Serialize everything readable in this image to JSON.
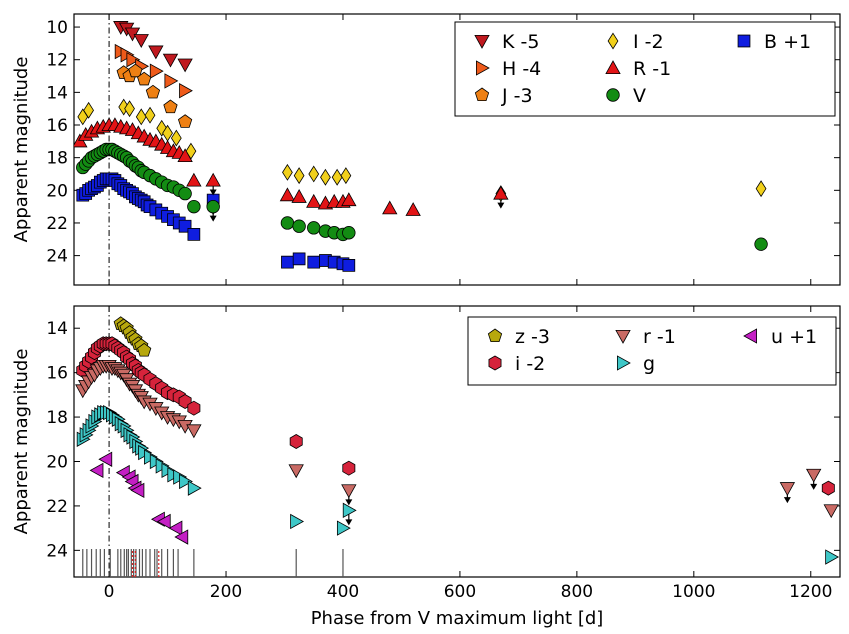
{
  "chart_data": [
    {
      "type": "scatter",
      "ylabel": "Apparent magnitude",
      "xlabel": "",
      "xlim": [
        -60,
        1250
      ],
      "ylim": [
        25.8,
        9.2
      ],
      "y_inverted": true,
      "xticks": [
        0,
        200,
        400,
        600,
        800,
        1000,
        1200
      ],
      "yticks": [
        10,
        12,
        14,
        16,
        18,
        20,
        22,
        24
      ],
      "vline_x": 0,
      "legend_position": "top-right",
      "series": [
        {
          "name": "K -5",
          "marker": "triangle-down",
          "color": "#c0191f",
          "x": [
            20,
            30,
            40,
            55,
            80,
            105,
            130
          ],
          "y": [
            10.0,
            10.1,
            10.4,
            10.8,
            11.5,
            12.0,
            12.3
          ]
        },
        {
          "name": "H -4",
          "marker": "triangle-right",
          "color": "#ee5a1a",
          "x": [
            20,
            30,
            40,
            55,
            80,
            105,
            130
          ],
          "y": [
            11.5,
            11.7,
            12.0,
            12.4,
            12.7,
            13.3,
            13.9
          ]
        },
        {
          "name": "J -3",
          "marker": "pentagon",
          "color": "#ee8014",
          "x": [
            25,
            35,
            45,
            60,
            75,
            105,
            130
          ],
          "y": [
            12.8,
            13.0,
            12.7,
            13.2,
            14.0,
            14.9,
            15.8
          ]
        },
        {
          "name": "I -2",
          "marker": "diamond",
          "color": "#f1d01b",
          "x": [
            -45,
            -35,
            25,
            35,
            55,
            70,
            90,
            100,
            115,
            140,
            305,
            325,
            350,
            370,
            390,
            405,
            670,
            1115
          ],
          "y": [
            15.5,
            15.1,
            14.9,
            15.0,
            15.5,
            15.4,
            16.2,
            16.5,
            16.8,
            17.6,
            18.9,
            19.1,
            19.0,
            19.2,
            19.2,
            19.1,
            20.2,
            19.9
          ],
          "upper_limit_x": [
            670
          ]
        },
        {
          "name": "R -1",
          "marker": "triangle-up",
          "color": "#e21416",
          "x": [
            -50,
            -40,
            -30,
            -20,
            -10,
            0,
            10,
            20,
            30,
            40,
            50,
            60,
            70,
            80,
            90,
            100,
            110,
            120,
            130,
            145,
            305,
            325,
            350,
            370,
            385,
            400,
            410,
            480,
            520,
            670
          ],
          "y": [
            17.0,
            16.6,
            16.4,
            16.2,
            16.1,
            16.0,
            16.0,
            16.1,
            16.2,
            16.3,
            16.5,
            16.7,
            16.9,
            17.0,
            17.2,
            17.4,
            17.6,
            17.7,
            17.9,
            19.4,
            20.3,
            20.4,
            20.7,
            20.8,
            20.7,
            20.7,
            20.6,
            21.1,
            21.2,
            20.2
          ]
        },
        {
          "name": "V",
          "marker": "circle",
          "color": "#138c13",
          "x": [
            -45,
            -40,
            -35,
            -30,
            -25,
            -20,
            -15,
            -10,
            -5,
            0,
            5,
            10,
            15,
            20,
            25,
            30,
            35,
            40,
            45,
            50,
            55,
            60,
            70,
            80,
            90,
            100,
            110,
            120,
            130,
            145,
            305,
            325,
            350,
            370,
            385,
            400,
            410,
            1115
          ],
          "y": [
            18.6,
            18.4,
            18.2,
            18.0,
            17.9,
            17.8,
            17.7,
            17.6,
            17.5,
            17.5,
            17.5,
            17.6,
            17.7,
            17.8,
            17.9,
            18.0,
            18.2,
            18.3,
            18.5,
            18.6,
            18.8,
            18.9,
            19.1,
            19.3,
            19.5,
            19.7,
            19.8,
            20.0,
            20.2,
            21.0,
            22.0,
            22.2,
            22.3,
            22.5,
            22.6,
            22.7,
            22.6,
            23.3
          ]
        },
        {
          "name": "B +1",
          "marker": "square",
          "color": "#0f1de0",
          "x": [
            -45,
            -40,
            -35,
            -30,
            -25,
            -20,
            -15,
            -10,
            -5,
            0,
            5,
            10,
            15,
            20,
            25,
            30,
            35,
            40,
            45,
            50,
            55,
            60,
            65,
            70,
            80,
            90,
            100,
            110,
            120,
            130,
            145,
            305,
            325,
            350,
            370,
            385,
            400,
            410
          ],
          "y": [
            20.3,
            20.2,
            20.0,
            19.9,
            19.8,
            19.7,
            19.5,
            19.4,
            19.3,
            19.3,
            19.3,
            19.4,
            19.6,
            19.7,
            19.9,
            20.0,
            20.1,
            20.2,
            20.4,
            20.5,
            20.6,
            20.7,
            20.9,
            21.0,
            21.2,
            21.4,
            21.6,
            21.8,
            22.0,
            22.2,
            22.7,
            24.4,
            24.2,
            24.4,
            24.3,
            24.4,
            24.5,
            24.6
          ]
        }
      ],
      "upper_limits": [
        {
          "series": "B +1",
          "x": 178,
          "y": 20.6
        },
        {
          "series": "V",
          "x": 178,
          "y": 21.0
        },
        {
          "series": "R -1",
          "x": 178,
          "y": 19.4
        }
      ]
    },
    {
      "type": "scatter",
      "ylabel": "Apparent magnitude",
      "xlabel": "Phase from V maximum light [d]",
      "xlim": [
        -60,
        1250
      ],
      "ylim": [
        25.2,
        13.0
      ],
      "y_inverted": true,
      "xticks": [
        0,
        200,
        400,
        600,
        800,
        1000,
        1200
      ],
      "xticklabels": [
        "0",
        "200",
        "400",
        "600",
        "800",
        "1000",
        "1200"
      ],
      "yticks": [
        14,
        16,
        18,
        20,
        22,
        24
      ],
      "vline_x": 0,
      "legend_position": "top-right",
      "series": [
        {
          "name": "z -3",
          "marker": "pentagon",
          "color": "#b7a80d",
          "x": [
            20,
            25,
            30,
            35,
            40,
            45,
            50,
            55,
            60
          ],
          "y": [
            13.8,
            13.9,
            14.0,
            14.2,
            14.4,
            14.5,
            14.7,
            14.8,
            15.0
          ]
        },
        {
          "name": "i -2",
          "marker": "hexagon",
          "color": "#d6233b",
          "x": [
            -45,
            -40,
            -35,
            -30,
            -25,
            -20,
            -15,
            -10,
            -5,
            0,
            5,
            10,
            15,
            20,
            25,
            30,
            35,
            40,
            45,
            50,
            55,
            60,
            70,
            80,
            90,
            100,
            110,
            120,
            130,
            145,
            320,
            410,
            1230
          ],
          "y": [
            15.9,
            15.7,
            15.5,
            15.3,
            15.1,
            14.9,
            14.8,
            14.7,
            14.7,
            14.7,
            14.7,
            14.8,
            14.9,
            15.0,
            15.1,
            15.3,
            15.4,
            15.6,
            15.7,
            15.9,
            16.0,
            16.1,
            16.3,
            16.5,
            16.7,
            16.9,
            17.0,
            17.1,
            17.3,
            17.6,
            19.1,
            20.3,
            21.2
          ]
        },
        {
          "name": "r -1",
          "marker": "triangle-down",
          "color": "#c96a64",
          "x": [
            -45,
            -40,
            -35,
            -30,
            -25,
            -20,
            -15,
            -10,
            -5,
            0,
            5,
            10,
            15,
            20,
            25,
            30,
            35,
            40,
            45,
            50,
            55,
            60,
            70,
            80,
            90,
            100,
            110,
            120,
            130,
            145,
            320,
            410,
            1160,
            1205,
            1235
          ],
          "y": [
            16.8,
            16.6,
            16.4,
            16.2,
            16.1,
            15.9,
            15.8,
            15.7,
            15.7,
            15.7,
            15.8,
            15.8,
            15.9,
            16.0,
            16.1,
            16.3,
            16.5,
            16.6,
            16.8,
            17.0,
            17.1,
            17.3,
            17.4,
            17.6,
            17.8,
            18.0,
            18.1,
            18.2,
            18.4,
            18.6,
            20.4,
            21.3,
            21.2,
            20.6,
            22.2
          ],
          "upper_limit_x": [
            410,
            1160,
            1205
          ]
        },
        {
          "name": "g",
          "marker": "triangle-right",
          "color": "#3ec7c7",
          "x": [
            -45,
            -40,
            -35,
            -30,
            -25,
            -20,
            -15,
            -10,
            -5,
            0,
            5,
            10,
            15,
            20,
            25,
            30,
            35,
            40,
            45,
            50,
            55,
            60,
            70,
            80,
            90,
            100,
            110,
            120,
            130,
            145,
            320,
            400,
            410,
            1235
          ],
          "y": [
            19.0,
            18.8,
            18.6,
            18.4,
            18.2,
            18.0,
            17.9,
            17.8,
            17.8,
            17.8,
            17.9,
            18.0,
            18.1,
            18.3,
            18.4,
            18.6,
            18.8,
            18.9,
            19.1,
            19.3,
            19.4,
            19.6,
            19.8,
            20.0,
            20.2,
            20.4,
            20.6,
            20.7,
            20.9,
            21.2,
            22.7,
            23.0,
            22.2,
            24.3
          ],
          "upper_limit_x": [
            410
          ]
        },
        {
          "name": "u +1",
          "marker": "triangle-left",
          "color": "#c41fc4",
          "x": [
            -20,
            -5,
            25,
            35,
            40,
            45,
            50,
            85,
            95,
            115,
            125
          ],
          "y": [
            20.4,
            19.9,
            20.5,
            20.7,
            20.9,
            21.2,
            21.3,
            22.6,
            22.7,
            23.0,
            23.4
          ]
        }
      ],
      "rug_black_x": [
        -45,
        -38,
        -30,
        -22,
        -15,
        -8,
        2,
        15,
        20,
        26,
        30,
        33,
        38,
        42,
        46,
        52,
        57,
        63,
        70,
        78,
        82,
        90,
        100,
        110,
        118,
        145,
        320,
        400
      ],
      "rug_red_x": [
        40,
        45,
        85
      ]
    }
  ]
}
